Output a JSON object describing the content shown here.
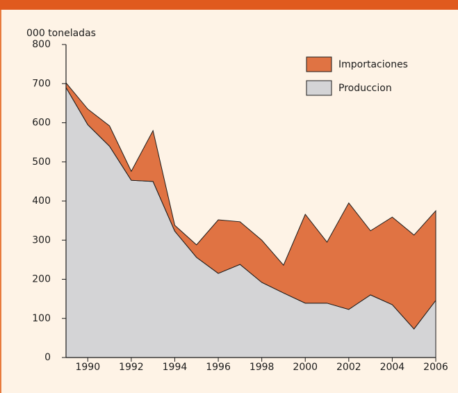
{
  "chart_data": {
    "type": "area",
    "stacked": true,
    "y_label": "000 toneladas",
    "x": [
      1989,
      1990,
      1991,
      1992,
      1993,
      1994,
      1995,
      1996,
      1997,
      1998,
      1999,
      2000,
      2001,
      2002,
      2003,
      2004,
      2005,
      2006
    ],
    "series": [
      {
        "name": "Produccion",
        "color": "#d4d4d6",
        "values": [
          690,
          595,
          540,
          453,
          450,
          323,
          256,
          215,
          238,
          192,
          165,
          139,
          139,
          123,
          160,
          135,
          73,
          146
        ]
      },
      {
        "name": "Importaciones",
        "color": "#e07343",
        "values": [
          12,
          40,
          52,
          23,
          130,
          15,
          32,
          137,
          109,
          108,
          71,
          227,
          156,
          272,
          164,
          224,
          240,
          229
        ]
      }
    ],
    "xlim": [
      1989,
      2006
    ],
    "xticks": [
      1990,
      1992,
      1994,
      1996,
      1998,
      2000,
      2002,
      2004,
      2006
    ],
    "ylim": [
      0,
      800
    ],
    "yticks": [
      0,
      100,
      200,
      300,
      400,
      500,
      600,
      700,
      800
    ],
    "legend": "top-right"
  }
}
